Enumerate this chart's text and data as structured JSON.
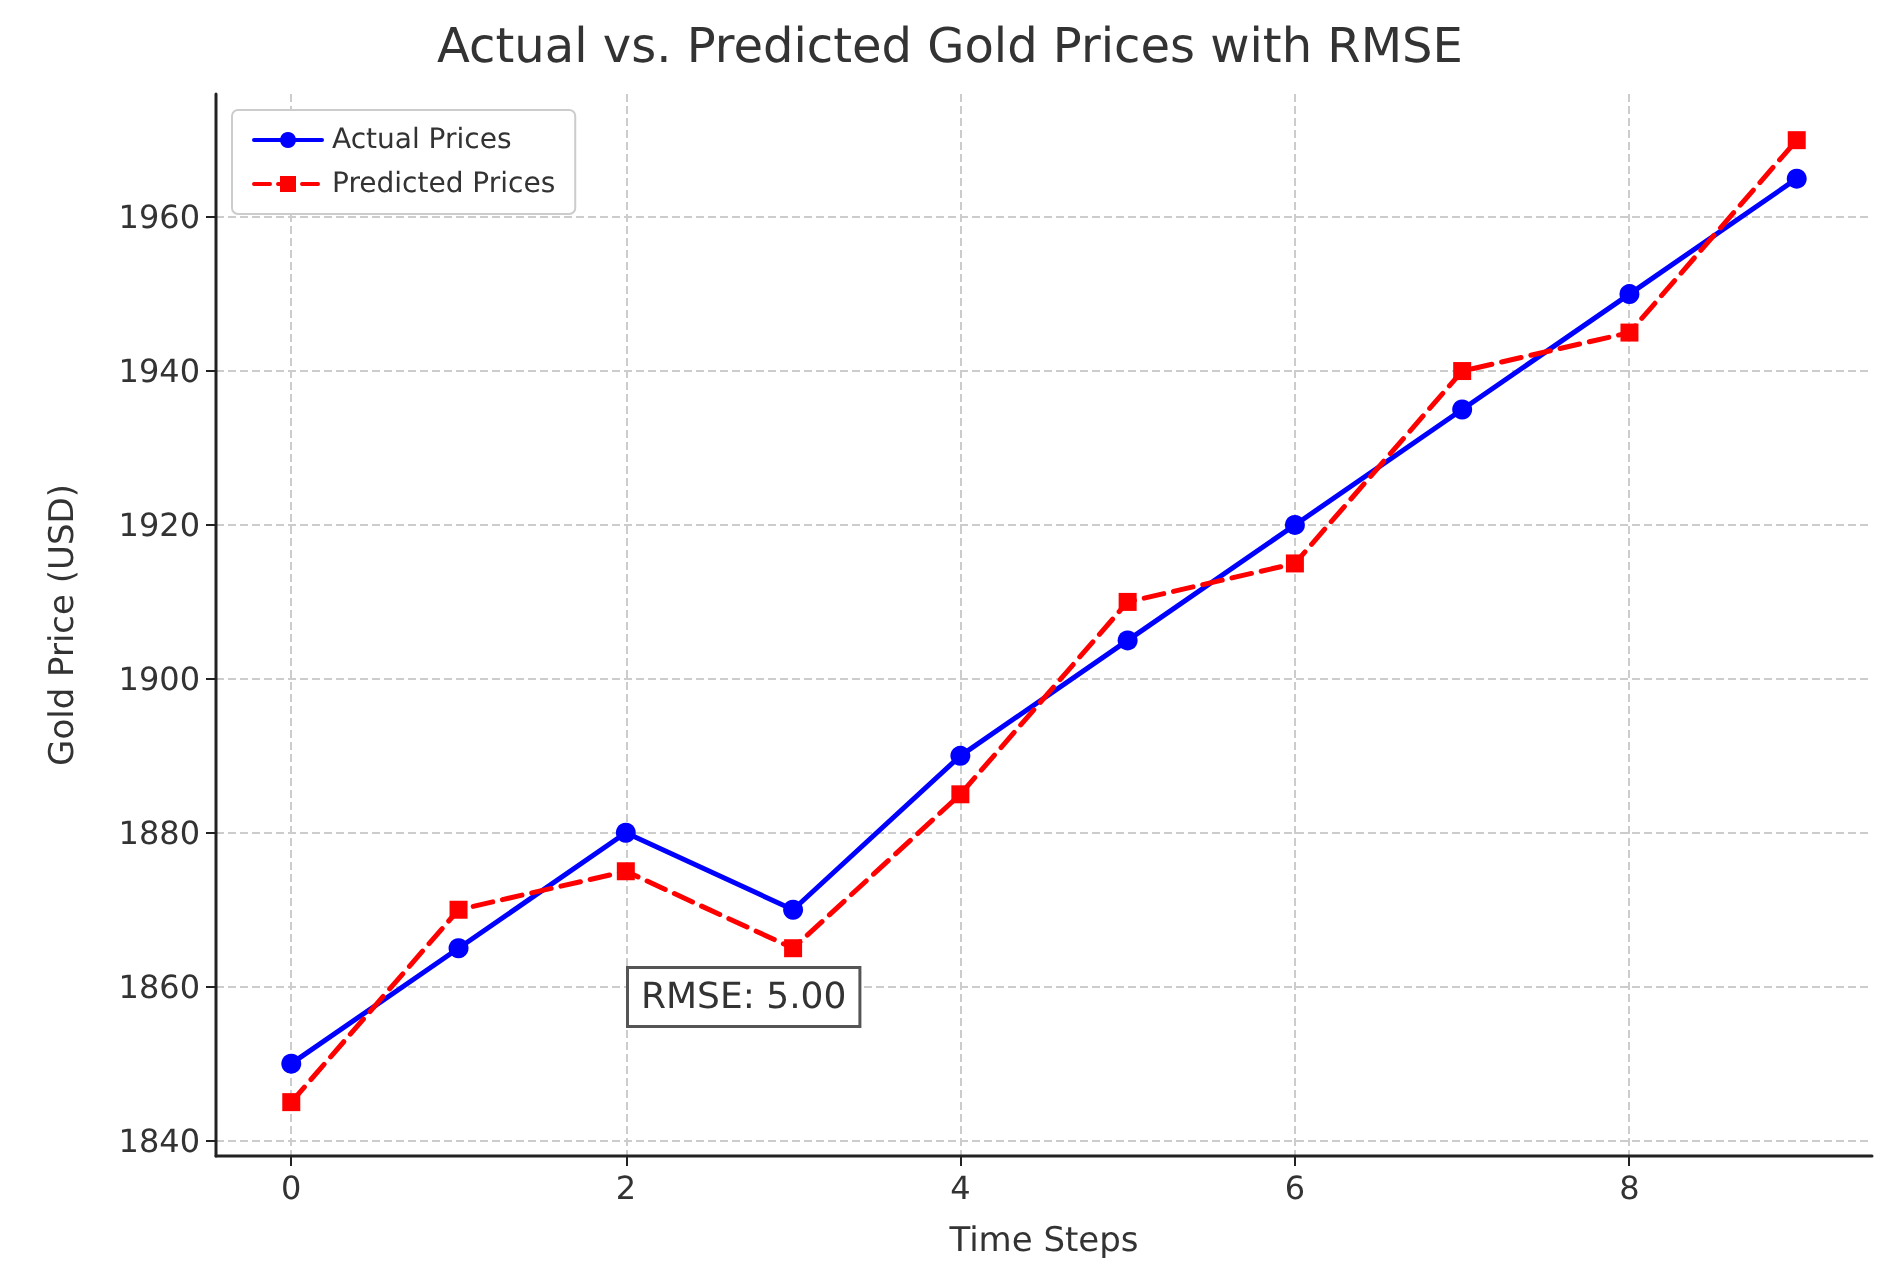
{
  "chart_data": {
    "type": "line",
    "title": "Actual vs. Predicted Gold Prices with RMSE",
    "xlabel": "Time Steps",
    "ylabel": "Gold Price (USD)",
    "x": [
      0,
      1,
      2,
      3,
      4,
      5,
      6,
      7,
      8,
      9
    ],
    "series": [
      {
        "name": "Actual Prices",
        "color": "#0000ff",
        "marker": "circle",
        "line_style": "solid",
        "values": [
          1850,
          1865,
          1880,
          1870,
          1890,
          1905,
          1920,
          1935,
          1950,
          1965
        ]
      },
      {
        "name": "Predicted Prices",
        "color": "#ff0000",
        "marker": "square",
        "line_style": "dashed",
        "values": [
          1845,
          1870,
          1875,
          1865,
          1885,
          1910,
          1915,
          1940,
          1945,
          1970
        ]
      }
    ],
    "xlim": [
      -0.45,
      9.45
    ],
    "xticks": [
      0,
      2,
      4,
      6,
      8
    ],
    "ylim": [
      1838,
      1976
    ],
    "yticks": [
      1840,
      1860,
      1880,
      1900,
      1920,
      1940,
      1960
    ],
    "annotations": [
      "RMSE: 5.00"
    ],
    "grid": true,
    "legend": "top left"
  }
}
